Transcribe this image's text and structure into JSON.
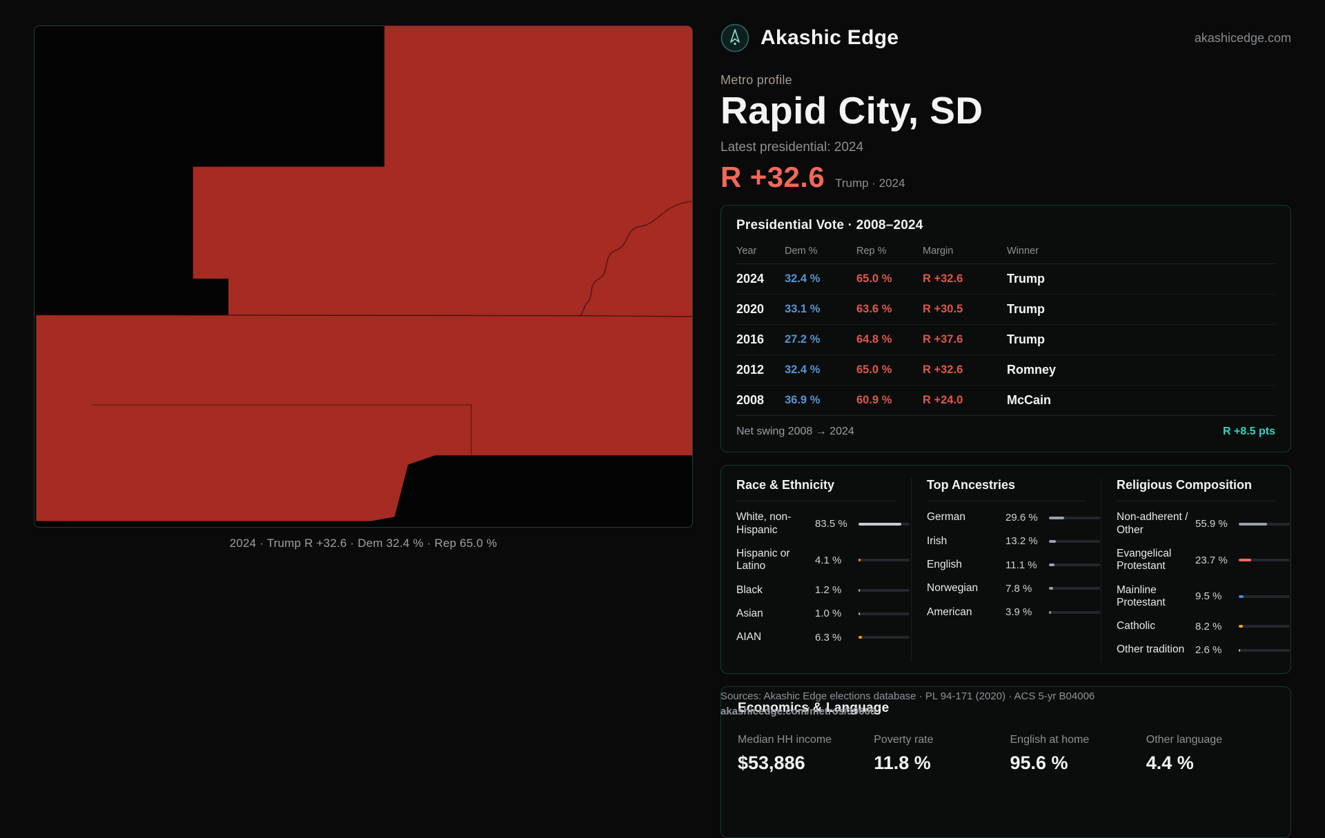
{
  "brand": {
    "name": "Akashic Edge",
    "domain": "akashicedge.com",
    "logo_icon": "compass-emblem-icon"
  },
  "header": {
    "eyebrow": "Metro profile",
    "title": "Rapid City, SD",
    "latest_label": "Latest presidential: 2024",
    "headline_margin": "R +32.6",
    "headline_sub": "Trump · 2024"
  },
  "map": {
    "caption": "2024 · Trump R +32.6 · Dem 32.4 % · Rep 65.0 %",
    "fill_color": "#a62b23"
  },
  "vote": {
    "title": "Presidential Vote · 2008–2024",
    "columns": [
      "Year",
      "Dem %",
      "Rep %",
      "Margin",
      "Winner"
    ],
    "rows": [
      {
        "year": "2024",
        "dem": "32.4 %",
        "rep": "65.0 %",
        "margin": "R +32.6",
        "winner": "Trump"
      },
      {
        "year": "2020",
        "dem": "33.1 %",
        "rep": "63.6 %",
        "margin": "R +30.5",
        "winner": "Trump"
      },
      {
        "year": "2016",
        "dem": "27.2 %",
        "rep": "64.8 %",
        "margin": "R +37.6",
        "winner": "Trump"
      },
      {
        "year": "2012",
        "dem": "32.4 %",
        "rep": "65.0 %",
        "margin": "R +32.6",
        "winner": "Romney"
      },
      {
        "year": "2008",
        "dem": "36.9 %",
        "rep": "60.9 %",
        "margin": "R +24.0",
        "winner": "McCain"
      }
    ],
    "net_swing_label": "Net swing 2008 → 2024",
    "net_swing_value": "R +8.5 pts"
  },
  "race": {
    "title": "Race & Ethnicity",
    "items": [
      {
        "label": "White, non-Hispanic",
        "value": "83.5 %",
        "pct": 83.5,
        "color": "#c9cdd3"
      },
      {
        "label": "Hispanic or Latino",
        "value": "4.1 %",
        "pct": 4.1,
        "color": "#f59e0b"
      },
      {
        "label": "Black",
        "value": "1.2 %",
        "pct": 1.2,
        "color": "#b9bec5"
      },
      {
        "label": "Asian",
        "value": "1.0 %",
        "pct": 1.0,
        "color": "#b9bec5"
      },
      {
        "label": "AIAN",
        "value": "6.3 %",
        "pct": 6.3,
        "color": "#f59e0b"
      }
    ]
  },
  "ancestries": {
    "title": "Top Ancestries",
    "items": [
      {
        "label": "German",
        "value": "29.6 %",
        "pct": 29.6,
        "color": "#9aa1a9"
      },
      {
        "label": "Irish",
        "value": "13.2 %",
        "pct": 13.2,
        "color": "#9aa1a9"
      },
      {
        "label": "English",
        "value": "11.1 %",
        "pct": 11.1,
        "color": "#9aa1a9"
      },
      {
        "label": "Norwegian",
        "value": "7.8 %",
        "pct": 7.8,
        "color": "#9aa1a9"
      },
      {
        "label": "American",
        "value": "3.9 %",
        "pct": 3.9,
        "color": "#9aa1a9"
      }
    ]
  },
  "religion": {
    "title": "Religious Composition",
    "items": [
      {
        "label": "Non-adherent / Other",
        "value": "55.9 %",
        "pct": 55.9,
        "color": "#9aa1a9"
      },
      {
        "label": "Evangelical Protestant",
        "value": "23.7 %",
        "pct": 23.7,
        "color": "#ef6a5a"
      },
      {
        "label": "Mainline Protestant",
        "value": "9.5 %",
        "pct": 9.5,
        "color": "#4f86d6"
      },
      {
        "label": "Catholic",
        "value": "8.2 %",
        "pct": 8.2,
        "color": "#f5a623"
      },
      {
        "label": "Other tradition",
        "value": "2.6 %",
        "pct": 2.6,
        "color": "#b9bec5"
      }
    ]
  },
  "economics": {
    "title": "Economics & Language",
    "stats": [
      {
        "label": "Median HH income",
        "value": "$53,886"
      },
      {
        "label": "Poverty rate",
        "value": "11.8 %"
      },
      {
        "label": "English at home",
        "value": "95.6 %"
      },
      {
        "label": "Other language",
        "value": "4.4 %"
      }
    ]
  },
  "sources": {
    "line1": "Sources: Akashic Edge elections database · PL 94-171 (2020) · ACS 5-yr B04006",
    "line2": "akashicedge.com/metros/39660"
  },
  "colors": {
    "dem_blue": "#5795d1",
    "rep_red": "#df5849",
    "accent_teal": "#2fd6c3",
    "headline_red": "#f0695b"
  }
}
